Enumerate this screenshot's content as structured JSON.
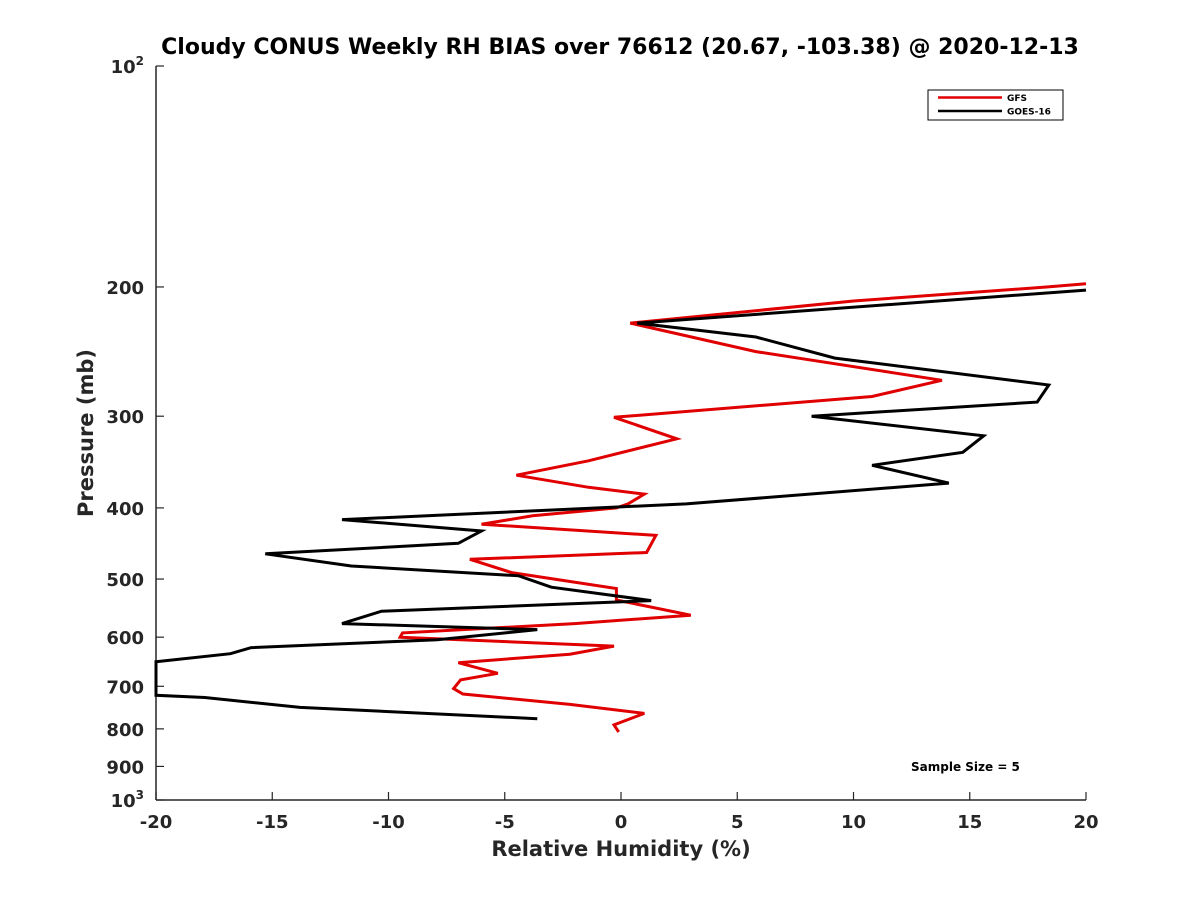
{
  "chart_data": {
    "type": "line",
    "title": "Cloudy CONUS Weekly RH BIAS over 76612 (20.67, -103.38) @ 2020-12-13",
    "xlabel": "Relative Humidity (%)",
    "ylabel": "Pressure (mb)",
    "xlim": [
      -20,
      20
    ],
    "ylim": [
      100,
      1000
    ],
    "yscale": "log",
    "y_reversed": true,
    "x_ticks": [
      -20,
      -15,
      -10,
      -5,
      0,
      5,
      10,
      15,
      20
    ],
    "x_tick_labels": [
      "-20",
      "-15",
      "-10",
      "-5",
      "0",
      "5",
      "10",
      "15",
      "20"
    ],
    "y_ticks": [
      {
        "value": 100,
        "base": "10",
        "exp": "2"
      },
      {
        "value": 200,
        "label": "200"
      },
      {
        "value": 300,
        "label": "300"
      },
      {
        "value": 400,
        "label": "400"
      },
      {
        "value": 500,
        "label": "500"
      },
      {
        "value": 600,
        "label": "600"
      },
      {
        "value": 700,
        "label": "700"
      },
      {
        "value": 800,
        "label": "800"
      },
      {
        "value": 900,
        "label": "900"
      },
      {
        "value": 1000,
        "base": "10",
        "exp": "3"
      }
    ],
    "legend": {
      "position": "top-right",
      "entries": [
        "GFS",
        "GOES-16"
      ]
    },
    "annotation": "Sample Size = 5",
    "series": [
      {
        "name": "GFS",
        "color": "#e00000",
        "points": [
          [
            20,
            198
          ],
          [
            18.3,
            200
          ],
          [
            10.0,
            209
          ],
          [
            0.4,
            224
          ],
          [
            5.8,
            245
          ],
          [
            13.8,
            268
          ],
          [
            10.8,
            282
          ],
          [
            -0.3,
            301
          ],
          [
            2.4,
            322
          ],
          [
            -1.4,
            345
          ],
          [
            -4.5,
            361
          ],
          [
            -1.4,
            375
          ],
          [
            1.0,
            383
          ],
          [
            0.3,
            395
          ],
          [
            -0.2,
            400
          ],
          [
            -3.8,
            410
          ],
          [
            -6.0,
            421
          ],
          [
            1.5,
            436
          ],
          [
            1.1,
            460
          ],
          [
            -6.5,
            470
          ],
          [
            -4.7,
            490
          ],
          [
            -0.2,
            515
          ],
          [
            -0.2,
            534
          ],
          [
            3.0,
            560
          ],
          [
            -2.0,
            575
          ],
          [
            -9.4,
            592
          ],
          [
            -9.5,
            600
          ],
          [
            -0.3,
            617
          ],
          [
            -2.2,
            633
          ],
          [
            -7.0,
            650
          ],
          [
            -5.3,
            672
          ],
          [
            -6.9,
            686
          ],
          [
            -7.2,
            705
          ],
          [
            -6.8,
            717
          ],
          [
            -2.2,
            741
          ],
          [
            1.0,
            762
          ],
          [
            -0.3,
            790
          ],
          [
            -0.1,
            808
          ]
        ]
      },
      {
        "name": "GOES-16",
        "color": "#000000",
        "points": [
          [
            20,
            202
          ],
          [
            0.7,
            224
          ],
          [
            5.8,
            234
          ],
          [
            9.2,
            250
          ],
          [
            18.4,
            272
          ],
          [
            17.9,
            287
          ],
          [
            8.2,
            300
          ],
          [
            15.6,
            319
          ],
          [
            14.7,
            336
          ],
          [
            10.8,
            350
          ],
          [
            14.1,
            370
          ],
          [
            2.8,
            395
          ],
          [
            -12.0,
            415
          ],
          [
            -6.0,
            430
          ],
          [
            -7.0,
            447
          ],
          [
            -15.3,
            462
          ],
          [
            -11.6,
            480
          ],
          [
            -4.4,
            495
          ],
          [
            -3.0,
            513
          ],
          [
            1.3,
            535
          ],
          [
            -10.3,
            553
          ],
          [
            -12.0,
            575
          ],
          [
            -3.6,
            586
          ],
          [
            -7.9,
            605
          ],
          [
            -15.9,
            620
          ],
          [
            -16.8,
            632
          ],
          [
            -20.0,
            648
          ],
          [
            -20.0,
            720
          ],
          [
            -17.9,
            725
          ],
          [
            -13.8,
            748
          ],
          [
            -3.6,
            775
          ]
        ]
      }
    ]
  }
}
